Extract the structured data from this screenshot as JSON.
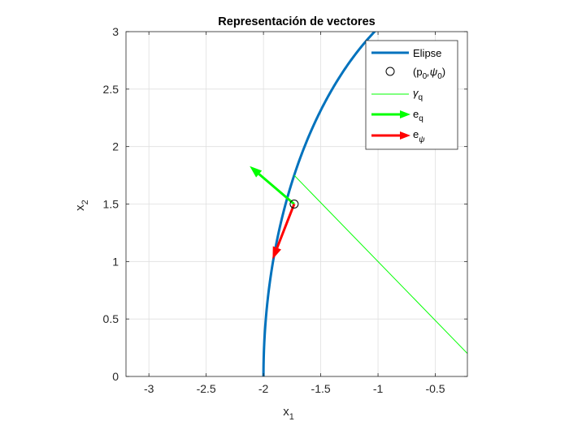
{
  "chart_data": {
    "type": "line",
    "title": "Representación de vectores",
    "xlabel": {
      "base": "x",
      "sub": "1"
    },
    "ylabel": {
      "base": "x",
      "sub": "2"
    },
    "xlim": [
      -3.2,
      -0.22
    ],
    "ylim": [
      0,
      3
    ],
    "xticks": [
      -3,
      -2.5,
      -2,
      -1.5,
      -1,
      -0.5
    ],
    "xtick_labels": [
      "-3",
      "-2.5",
      "-2",
      "-1.5",
      "-1",
      "-0.5"
    ],
    "yticks": [
      0,
      0.5,
      1,
      1.5,
      2,
      2.5,
      3
    ],
    "ytick_labels": [
      "0",
      "0.5",
      "1",
      "1.5",
      "2",
      "2.5",
      "3"
    ],
    "grid": true,
    "legend_placement": "top-right",
    "colors": {
      "elipse": "#0072BD",
      "gamma_q": "#00FF00",
      "e_q": "#00FF00",
      "e_psi": "#FF0000",
      "point": "#000000",
      "grid": "#DFDFDF",
      "axis": "#262626"
    },
    "series": [
      {
        "key": "elipse",
        "name": "Elipse",
        "kind": "curve",
        "ellipse": {
          "cx": 0,
          "cy": 0,
          "a": 2,
          "b": 3.5
        },
        "theta_range": [
          91.5,
          180
        ]
      },
      {
        "key": "gamma_q",
        "name": "γ",
        "name_sub": "q",
        "kind": "line",
        "x": [
          -1.732,
          -0.22
        ],
        "y": [
          1.75,
          0.2
        ]
      },
      {
        "key": "e_q",
        "name": "e",
        "name_sub": "q",
        "kind": "arrow",
        "start": [
          -1.732,
          1.5
        ],
        "end": [
          -2.12,
          1.83
        ]
      },
      {
        "key": "e_psi",
        "name": "e",
        "name_sub": "ψ",
        "kind": "arrow",
        "start": [
          -1.732,
          1.5
        ],
        "end": [
          -1.92,
          1.02
        ]
      },
      {
        "key": "point",
        "name": "(p",
        "name_sub": "0",
        "name_mid": ",ψ",
        "name_sub2": "0",
        "name_end": ")",
        "kind": "marker",
        "x": [
          -1.732
        ],
        "y": [
          1.5
        ]
      }
    ]
  }
}
